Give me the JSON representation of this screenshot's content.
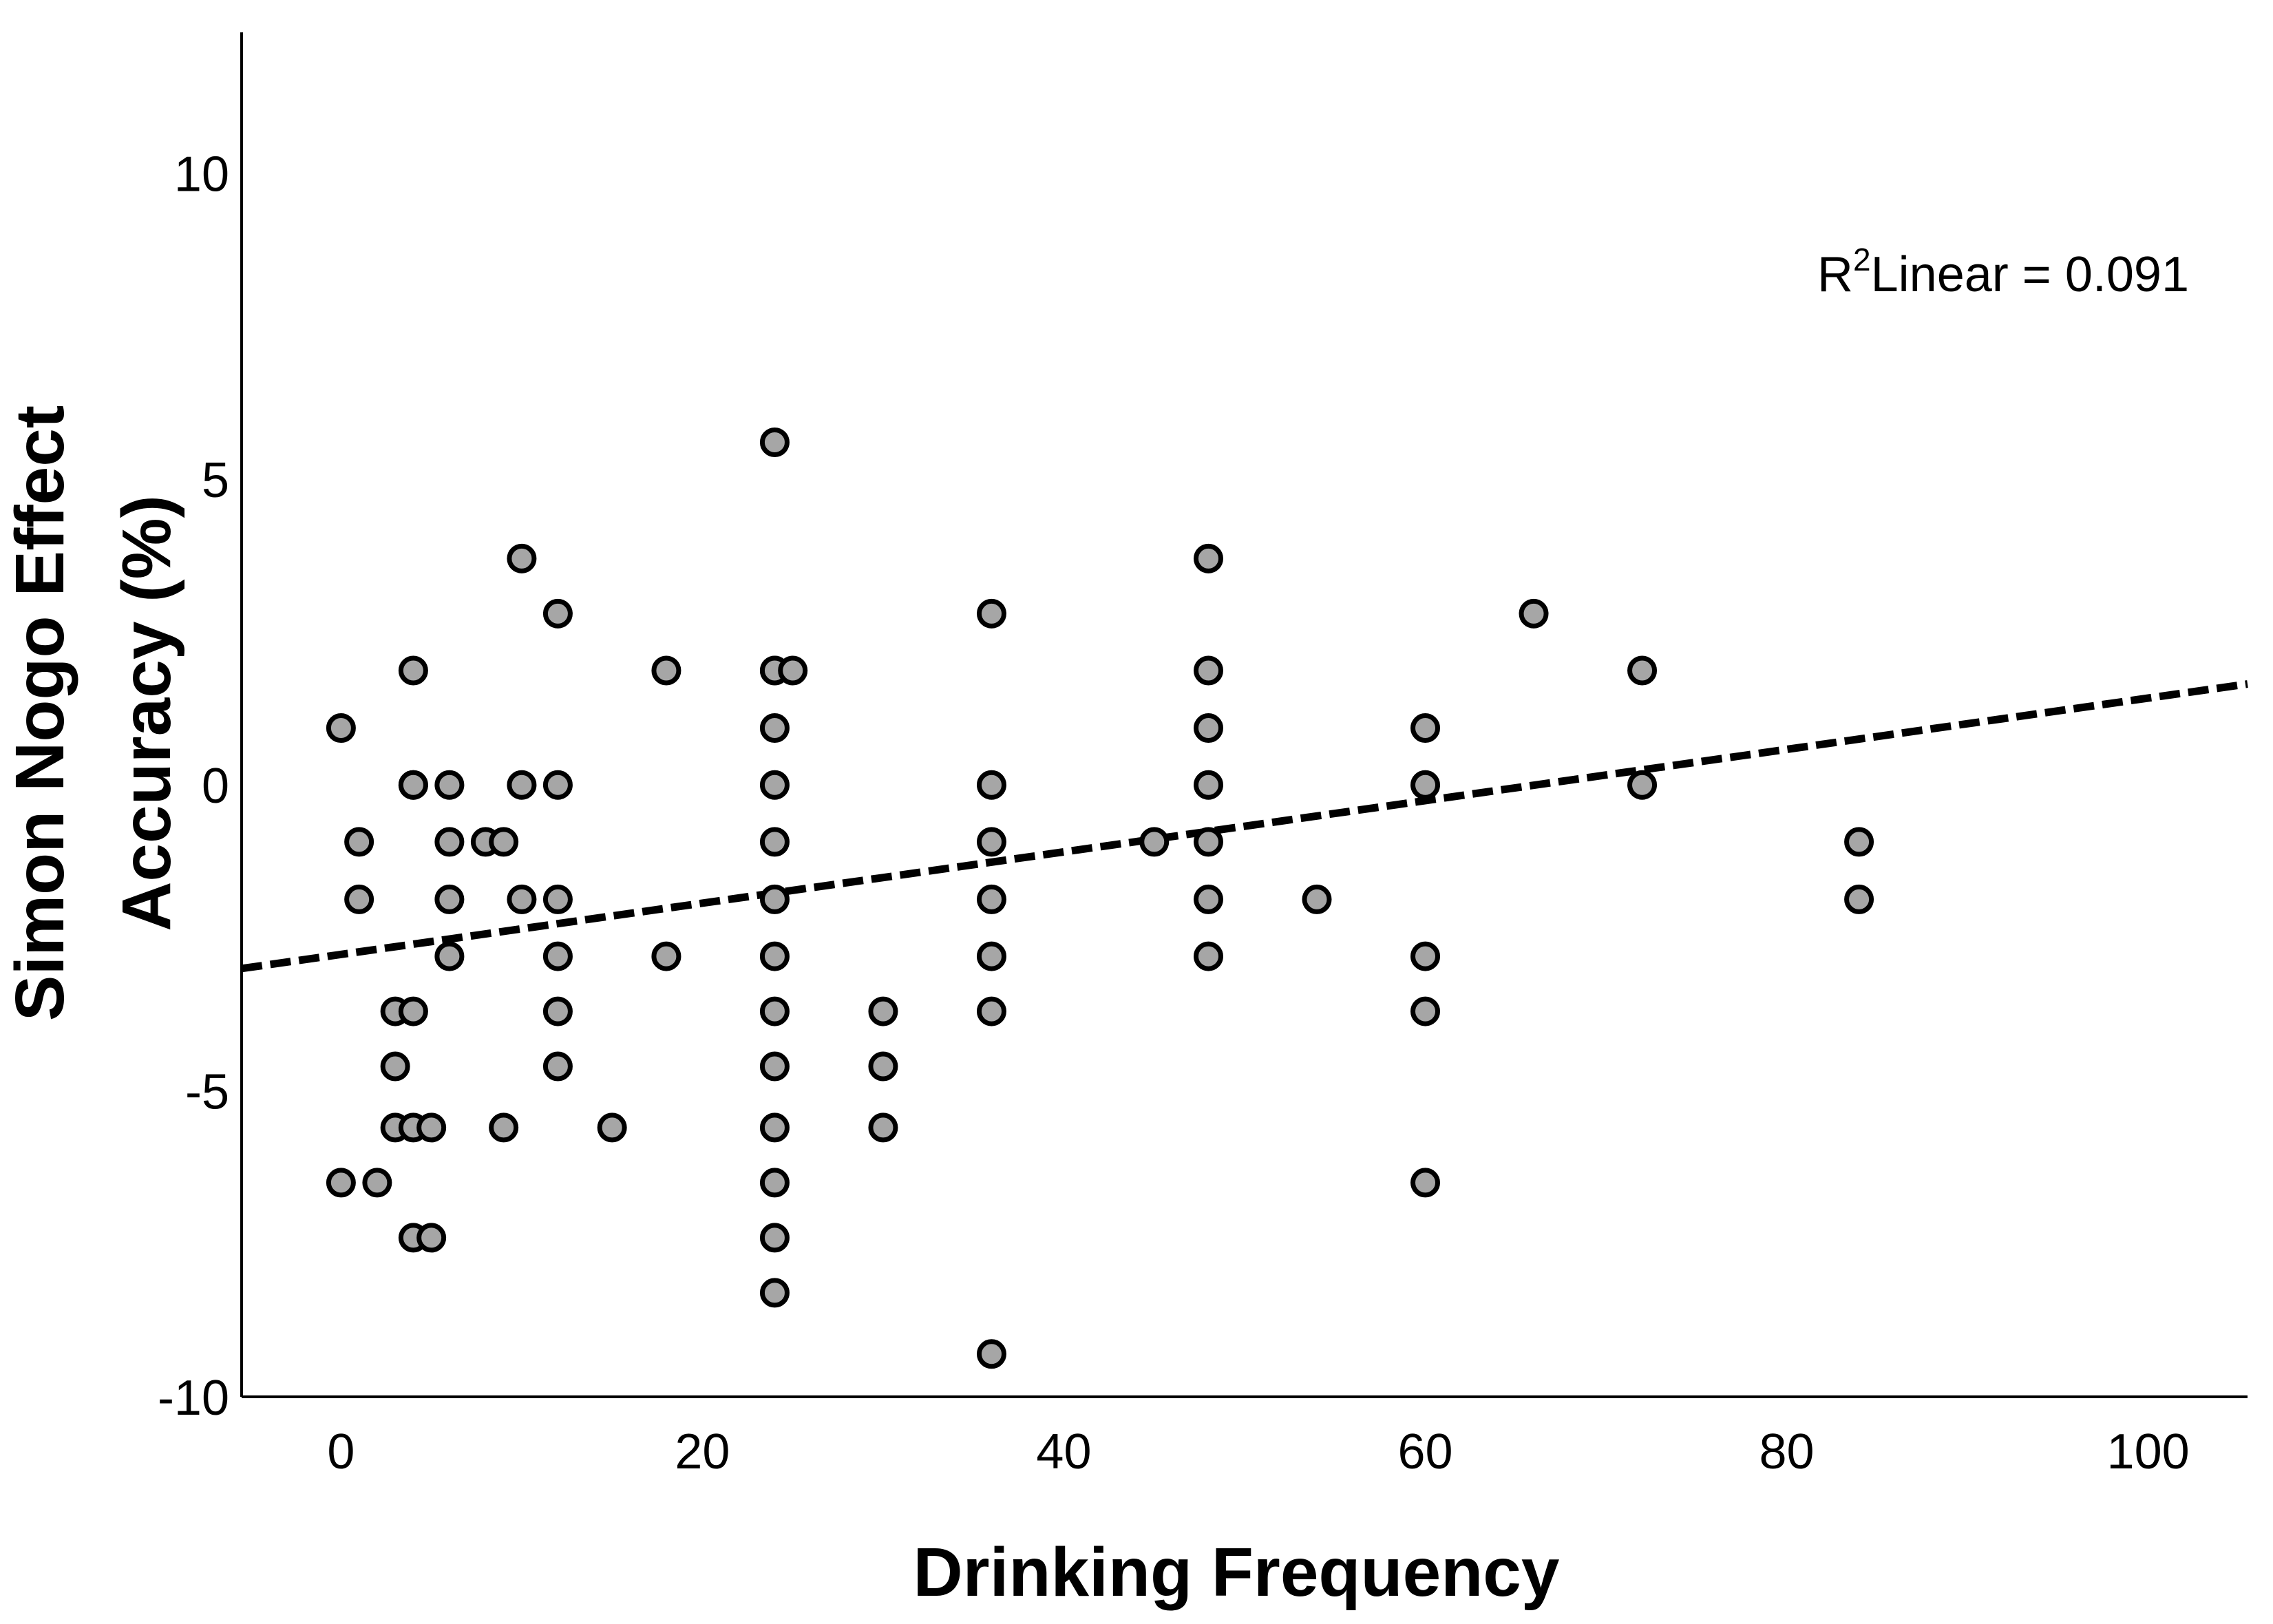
{
  "chart_data": {
    "type": "scatter",
    "title": "",
    "xlabel": "Drinking Frequency",
    "ylabel_line1": "Simon Nogo Effect",
    "ylabel_line2": "Accuracy (%)",
    "xlim": [
      -5.5,
      105.5
    ],
    "ylim": [
      -10,
      12.3
    ],
    "xticks": [
      0,
      20,
      40,
      60,
      80,
      100
    ],
    "yticks": [
      -10,
      -5,
      0,
      5,
      10
    ],
    "xtick_labels": [
      "0",
      "20",
      "40",
      "60",
      "80",
      "100"
    ],
    "ytick_labels": [
      "-10",
      "-5",
      "0",
      "5",
      "10"
    ],
    "grid": false,
    "annotation": {
      "prefix": "R",
      "superscript": "2",
      "suffix": "Linear = 0.091"
    },
    "fit_line": {
      "x": [
        -5.5,
        105.5
      ],
      "y": [
        -3.0,
        1.65
      ],
      "style": "dashed",
      "color": "#000000"
    },
    "marker": {
      "fill": "#a6a6a6",
      "edge": "#000000"
    },
    "points": {
      "x": [
        0,
        0,
        1,
        1,
        2,
        3,
        3,
        3,
        4,
        4,
        4,
        4,
        4,
        4,
        5,
        5,
        6,
        6,
        6,
        6,
        8,
        9,
        9,
        10,
        10,
        10,
        12,
        12,
        12,
        12,
        12,
        12,
        15,
        18,
        18,
        24,
        24,
        24,
        24,
        24,
        24,
        24,
        24,
        24,
        24,
        24,
        24,
        24,
        24,
        25,
        30,
        30,
        30,
        36,
        36,
        36,
        36,
        36,
        36,
        36,
        45,
        48,
        48,
        48,
        48,
        48,
        48,
        48,
        54,
        60,
        60,
        60,
        60,
        60,
        66,
        72,
        72,
        84,
        84
      ],
      "y": [
        0.93,
        -6.5,
        -0.93,
        -1.87,
        -6.5,
        -3.7,
        -4.6,
        -5.6,
        1.87,
        0,
        -3.7,
        -5.6,
        -7.4,
        0,
        -5.6,
        -7.4,
        0,
        -0.93,
        -1.87,
        -2.8,
        -0.93,
        -0.93,
        -5.6,
        3.7,
        0,
        -1.87,
        2.8,
        0,
        -1.87,
        -2.8,
        -3.7,
        -4.6,
        -5.6,
        1.87,
        -2.8,
        5.6,
        1.87,
        0.93,
        0,
        -0.93,
        -1.87,
        -2.8,
        -3.7,
        -4.6,
        -5.6,
        -6.5,
        -7.4,
        -8.3,
        1.87,
        1.87,
        -3.7,
        -4.6,
        -5.6,
        2.8,
        0,
        -0.93,
        -1.87,
        -2.8,
        -3.7,
        -9.3,
        -0.93,
        3.7,
        1.87,
        0.93,
        0,
        -0.93,
        -1.87,
        -2.8,
        -1.87,
        0.93,
        0,
        -2.8,
        -3.7,
        -6.5,
        2.8,
        1.87,
        0,
        -0.93,
        -1.87
      ]
    }
  }
}
